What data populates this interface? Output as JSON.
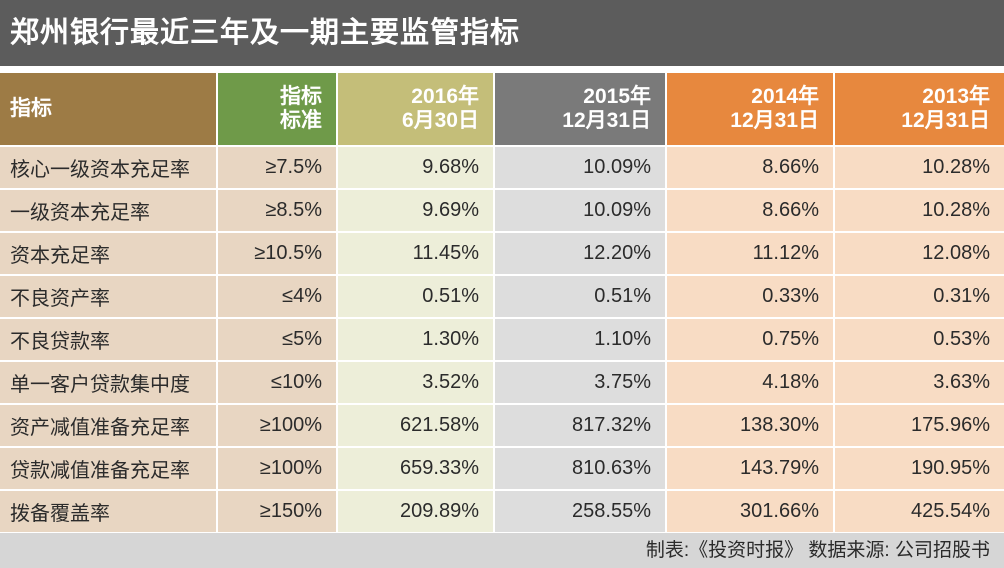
{
  "title": "郑州银行最近三年及一期主要监管指标",
  "chart_data": {
    "type": "table",
    "title": "郑州银行最近三年及一期主要监管指标",
    "columns": [
      "指标",
      "指标\n标准",
      "2016年\n6月30日",
      "2015年\n12月31日",
      "2014年\n12月31日",
      "2013年\n12月31日"
    ],
    "rows": [
      [
        "核心一级资本充足率",
        "≥7.5%",
        "9.68%",
        "10.09%",
        "8.66%",
        "10.28%"
      ],
      [
        "一级资本充足率",
        "≥8.5%",
        "9.69%",
        "10.09%",
        "8.66%",
        "10.28%"
      ],
      [
        "资本充足率",
        "≥10.5%",
        "11.45%",
        "12.20%",
        "11.12%",
        "12.08%"
      ],
      [
        "不良资产率",
        "≤4%",
        "0.51%",
        "0.51%",
        "0.33%",
        "0.31%"
      ],
      [
        "不良贷款率",
        "≤5%",
        "1.30%",
        "1.10%",
        "0.75%",
        "0.53%"
      ],
      [
        "单一客户贷款集中度",
        "≤10%",
        "3.52%",
        "3.75%",
        "4.18%",
        "3.63%"
      ],
      [
        "资产减值准备充足率",
        "≥100%",
        "621.58%",
        "817.32%",
        "138.30%",
        "175.96%"
      ],
      [
        "贷款减值准备充足率",
        "≥100%",
        "659.33%",
        "810.63%",
        "143.79%",
        "190.95%"
      ],
      [
        "拨备覆盖率",
        "≥150%",
        "209.89%",
        "258.55%",
        "301.66%",
        "425.54%"
      ]
    ]
  },
  "footer": "制表:《投资时报》 数据来源: 公司招股书",
  "colors": {
    "title_bg": "#5c5c5c",
    "col_indicator": "#9d7b45",
    "col_standard": "#6f9a49",
    "col_2016": "#c4be79",
    "col_2015": "#7a7a7a",
    "col_2014": "#e7883e",
    "col_2013": "#e7883e"
  }
}
